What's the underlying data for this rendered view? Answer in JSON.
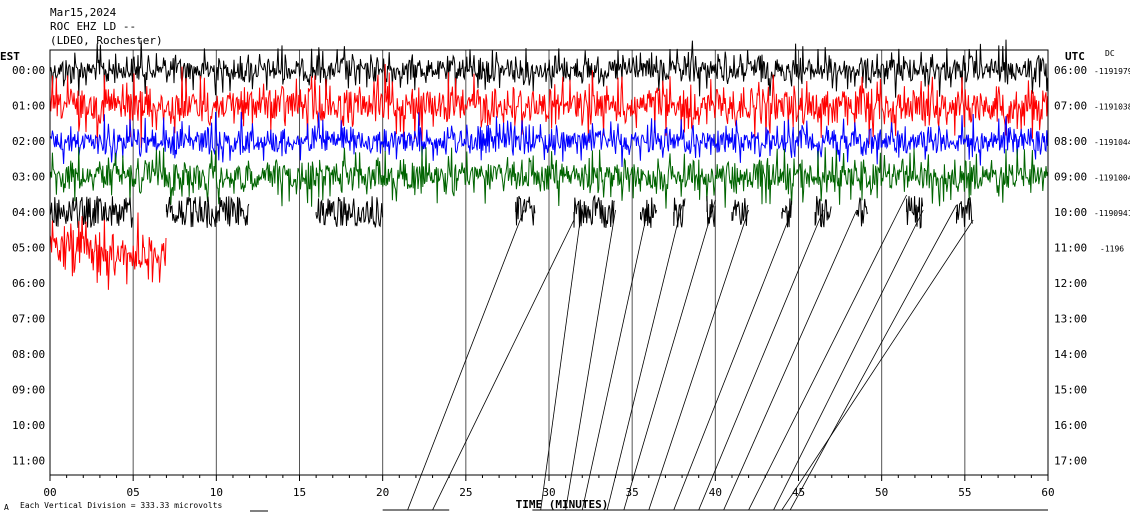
{
  "header": {
    "date": "Mar15,2024",
    "station": "ROC EHZ LD --",
    "location": "(LDEO, Rochester)"
  },
  "chart_data": {
    "type": "line",
    "title": "ROC EHZ LD --",
    "left_axis_label": "EST",
    "right_axis_label": "UTC",
    "dc_label": "DC",
    "xlabel": "TIME (MINUTES)",
    "xlim": [
      0,
      60
    ],
    "x_ticks": [
      "00",
      "05",
      "10",
      "15",
      "20",
      "25",
      "30",
      "35",
      "40",
      "45",
      "50",
      "55",
      "60"
    ],
    "rows_est": [
      "00:00",
      "01:00",
      "02:00",
      "03:00",
      "04:00",
      "05:00",
      "06:00",
      "07:00",
      "08:00",
      "09:00",
      "10:00",
      "11:00"
    ],
    "rows_utc": [
      "06:00",
      "07:00",
      "08:00",
      "09:00",
      "10:00",
      "11:00",
      "12:00",
      "13:00",
      "14:00",
      "15:00",
      "16:00",
      "17:00"
    ],
    "dc_values": [
      "-1191979",
      "-1191038",
      "-1191044",
      "-1191004",
      "-1190941",
      "-1196"
    ],
    "trace_colors": [
      "#000000",
      "#ff0000",
      "#0000ff",
      "#006400",
      "#000000",
      "#ff0000"
    ],
    "trace_extent_minutes": [
      60,
      60,
      60,
      60,
      60,
      7
    ],
    "trace_amplitude": [
      1.0,
      1.4,
      1.0,
      1.2,
      1.0,
      1.5
    ],
    "bursts_row4": [
      [
        0,
        5
      ],
      [
        7,
        12
      ],
      [
        16,
        20
      ],
      [
        28,
        29.2
      ],
      [
        31.5,
        34
      ],
      [
        35.5,
        36.5
      ],
      [
        37.5,
        38.2
      ],
      [
        39.5,
        40
      ],
      [
        41,
        42
      ],
      [
        44,
        44.6
      ],
      [
        46,
        47
      ],
      [
        48.5,
        49.2
      ],
      [
        51.5,
        52.5
      ],
      [
        54.5,
        55.5
      ]
    ],
    "footer_note": "Each Vertical Division =  333.33 microvolts"
  }
}
